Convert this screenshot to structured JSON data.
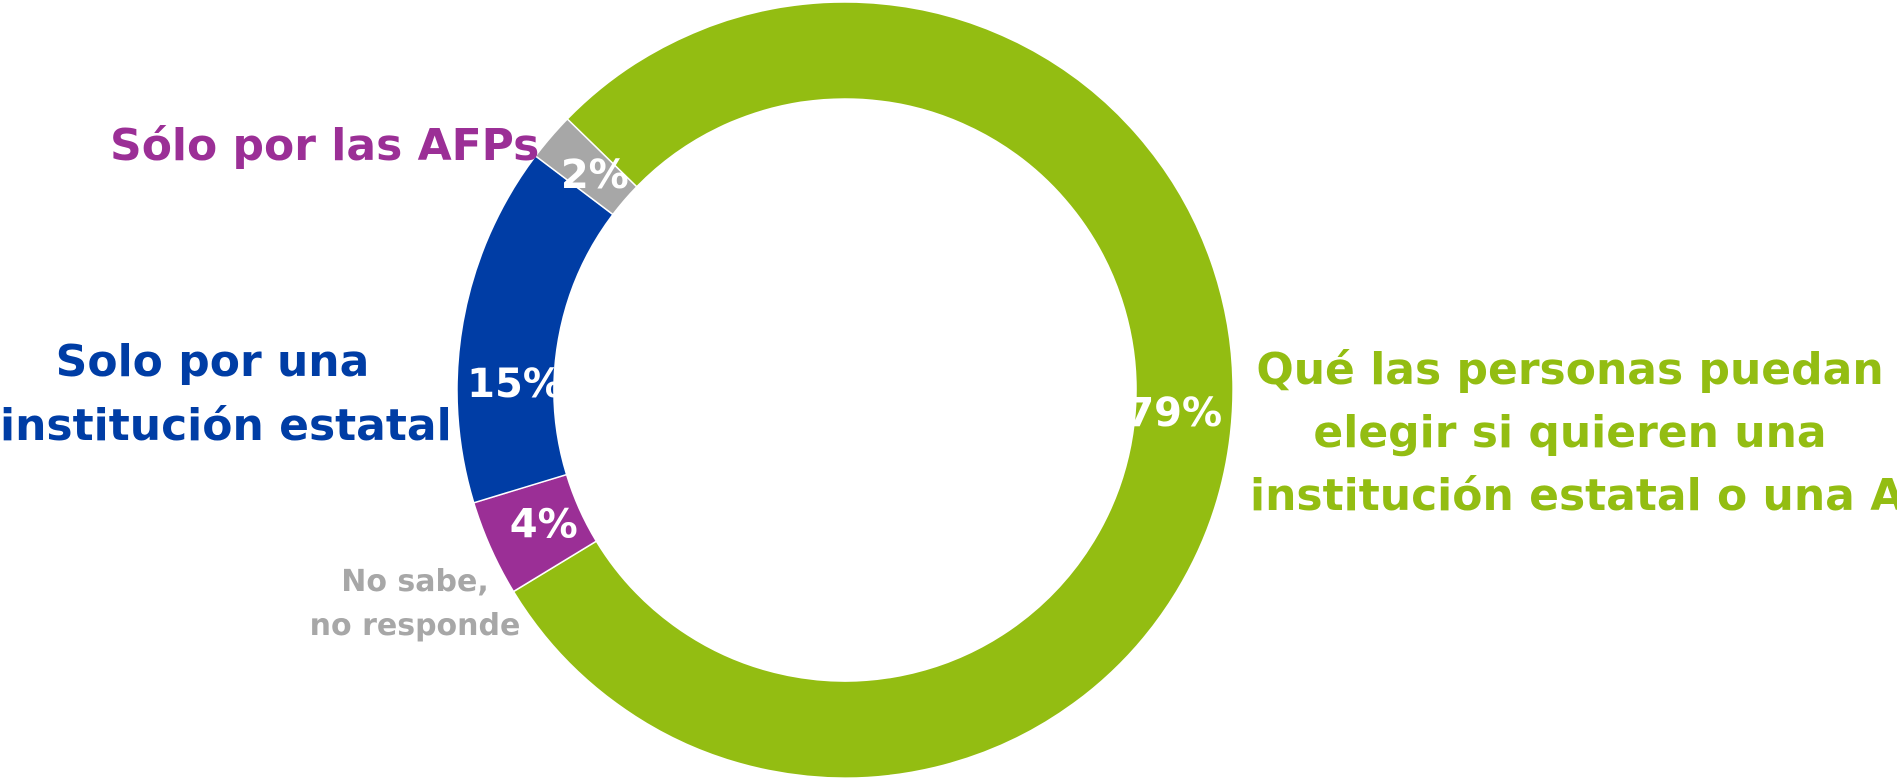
{
  "chart_data": {
    "type": "pie",
    "subtype": "donut",
    "title": "",
    "slices": [
      {
        "key": "choice",
        "label_lines": [
          "Qué las personas puedan",
          "elegir si quieren una",
          "institución estatal o una AFP"
        ],
        "value": 79,
        "display": "79%",
        "color": "#93BD12"
      },
      {
        "key": "afp_only",
        "label_lines": [
          "Sólo por las AFPs"
        ],
        "value": 4,
        "display": "4%",
        "color": "#9B2F96"
      },
      {
        "key": "state_only",
        "label_lines": [
          "Solo por una",
          "institución estatal"
        ],
        "value": 15,
        "display": "15%",
        "color": "#003DA5"
      },
      {
        "key": "no_answer",
        "label_lines": [
          "No sabe,",
          "no responde"
        ],
        "value": 2,
        "display": "2%",
        "color": "#A7A7A7"
      }
    ],
    "legend": "none",
    "label_color_matches_slice": true
  }
}
